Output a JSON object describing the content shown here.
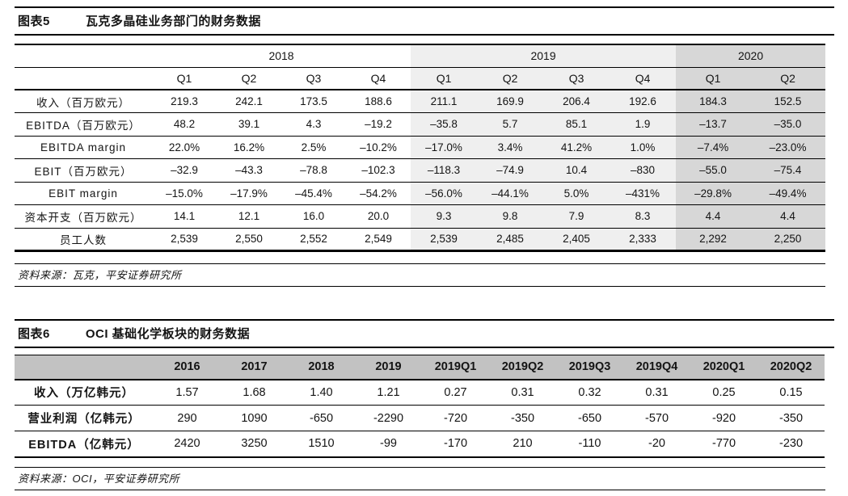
{
  "colors": {
    "shade_2019": "#efefef",
    "shade_2020": "#d7d7d7",
    "table2_header": "#c2c2c2",
    "rule": "#000000",
    "background": "#ffffff"
  },
  "figure5": {
    "label": "图表5",
    "title": "瓦克多晶硅业务部门的财务数据",
    "source": "资料来源：瓦克，平安证券研究所",
    "table": {
      "year_groups": [
        {
          "label": "2018",
          "span": 4,
          "shade": "none"
        },
        {
          "label": "2019",
          "span": 4,
          "shade": "light"
        },
        {
          "label": "2020",
          "span": 2,
          "shade": "dark"
        }
      ],
      "quarter_headers": [
        "Q1",
        "Q2",
        "Q3",
        "Q4",
        "Q1",
        "Q2",
        "Q3",
        "Q4",
        "Q1",
        "Q2"
      ],
      "rows": [
        {
          "label": "收入（百万欧元）",
          "values": [
            "219.3",
            "242.1",
            "173.5",
            "188.6",
            "211.1",
            "169.9",
            "206.4",
            "192.6",
            "184.3",
            "152.5"
          ]
        },
        {
          "label": "EBITDA（百万欧元）",
          "values": [
            "48.2",
            "39.1",
            "4.3",
            "–19.2",
            "–35.8",
            "5.7",
            "85.1",
            "1.9",
            "–13.7",
            "–35.0"
          ]
        },
        {
          "label": "EBITDA margin",
          "values": [
            "22.0%",
            "16.2%",
            "2.5%",
            "–10.2%",
            "–17.0%",
            "3.4%",
            "41.2%",
            "1.0%",
            "–7.4%",
            "–23.0%"
          ]
        },
        {
          "label": "EBIT（百万欧元）",
          "values": [
            "–32.9",
            "–43.3",
            "–78.8",
            "–102.3",
            "–118.3",
            "–74.9",
            "10.4",
            "–830",
            "–55.0",
            "–75.4"
          ]
        },
        {
          "label": "EBIT margin",
          "values": [
            "–15.0%",
            "–17.9%",
            "–45.4%",
            "–54.2%",
            "–56.0%",
            "–44.1%",
            "5.0%",
            "–431%",
            "–29.8%",
            "–49.4%"
          ]
        },
        {
          "label": "资本开支（百万欧元）",
          "values": [
            "14.1",
            "12.1",
            "16.0",
            "20.0",
            "9.3",
            "9.8",
            "7.9",
            "8.3",
            "4.4",
            "4.4"
          ]
        },
        {
          "label": "员工人数",
          "values": [
            "2,539",
            "2,550",
            "2,552",
            "2,549",
            "2,539",
            "2,485",
            "2,405",
            "2,333",
            "2,292",
            "2,250"
          ]
        }
      ]
    }
  },
  "figure6": {
    "label": "图表6",
    "title": "OCI 基础化学板块的财务数据",
    "source": "资料来源：OCI，平安证券研究所",
    "table": {
      "headers": [
        "2016",
        "2017",
        "2018",
        "2019",
        "2019Q1",
        "2019Q2",
        "2019Q3",
        "2019Q4",
        "2020Q1",
        "2020Q2"
      ],
      "rows": [
        {
          "label": "收入（万亿韩元）",
          "values": [
            "1.57",
            "1.68",
            "1.40",
            "1.21",
            "0.27",
            "0.31",
            "0.32",
            "0.31",
            "0.25",
            "0.15"
          ]
        },
        {
          "label": "营业利润（亿韩元）",
          "values": [
            "290",
            "1090",
            "-650",
            "-2290",
            "-720",
            "-350",
            "-650",
            "-570",
            "-920",
            "-350"
          ]
        },
        {
          "label": "EBITDA（亿韩元）",
          "values": [
            "2420",
            "3250",
            "1510",
            "-99",
            "-170",
            "210",
            "-110",
            "-20",
            "-770",
            "-230"
          ]
        }
      ]
    }
  }
}
